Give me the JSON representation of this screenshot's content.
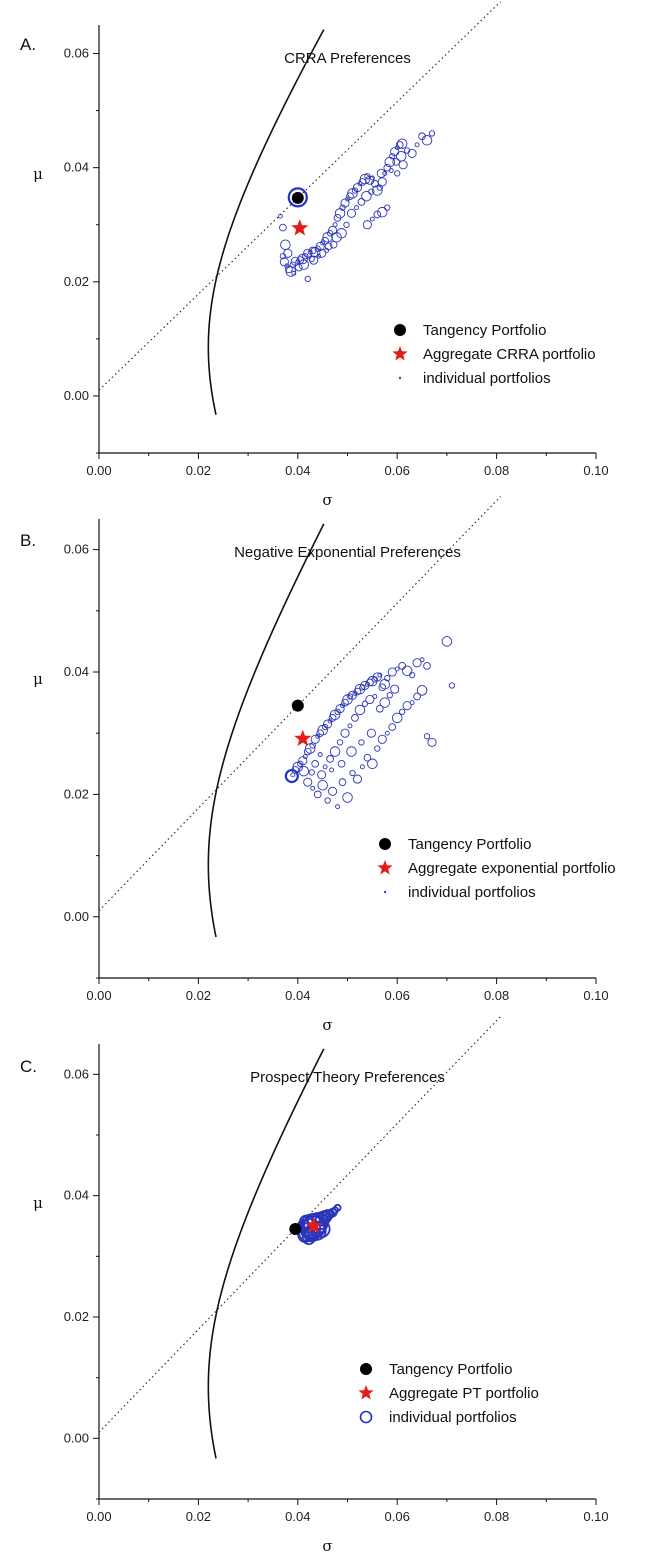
{
  "chart_data": [
    {
      "type": "scatter",
      "panel_label": "A.",
      "title": "CRRA Preferences",
      "xlabel": "σ",
      "ylabel": "μ",
      "xlim": [
        0.0,
        0.1
      ],
      "ylim": [
        -0.01,
        0.065
      ],
      "xticks": [
        "0.00",
        "0.02",
        "0.04",
        "0.06",
        "0.08",
        "0.10"
      ],
      "yticks": [
        "0.00",
        "0.02",
        "0.04",
        "0.06"
      ],
      "xtick_values": [
        0.0,
        0.02,
        0.04,
        0.06,
        0.08,
        0.1
      ],
      "ytick_values": [
        0.0,
        0.02,
        0.04,
        0.06
      ],
      "legend_position": "bottom-right",
      "legend": [
        "Tangency Portfolio",
        "Aggregate CRRA portfolio",
        "individual portfolios"
      ],
      "tangency": {
        "x": 0.04,
        "y": 0.0347
      },
      "aggregate": {
        "x": 0.0404,
        "y": 0.0294
      },
      "individual_highlight": {
        "x": 0.04,
        "y": 0.0348,
        "r": 9
      },
      "individual_portfolios": [
        [
          0.0365,
          0.0315
        ],
        [
          0.037,
          0.0295
        ],
        [
          0.0375,
          0.0265
        ],
        [
          0.037,
          0.0245
        ],
        [
          0.0373,
          0.0235
        ],
        [
          0.0378,
          0.0228
        ],
        [
          0.0382,
          0.0222
        ],
        [
          0.0386,
          0.0218
        ],
        [
          0.039,
          0.023
        ],
        [
          0.0395,
          0.0236
        ],
        [
          0.04,
          0.0235
        ],
        [
          0.0405,
          0.0238
        ],
        [
          0.041,
          0.024
        ],
        [
          0.0415,
          0.0245
        ],
        [
          0.042,
          0.025
        ],
        [
          0.0425,
          0.0252
        ],
        [
          0.043,
          0.0255
        ],
        [
          0.0435,
          0.0252
        ],
        [
          0.044,
          0.0258
        ],
        [
          0.0445,
          0.0262
        ],
        [
          0.045,
          0.0268
        ],
        [
          0.0455,
          0.0272
        ],
        [
          0.046,
          0.0278
        ],
        [
          0.0465,
          0.0285
        ],
        [
          0.047,
          0.029
        ],
        [
          0.0475,
          0.03
        ],
        [
          0.048,
          0.0312
        ],
        [
          0.0485,
          0.032
        ],
        [
          0.049,
          0.033
        ],
        [
          0.0495,
          0.0338
        ],
        [
          0.05,
          0.0345
        ],
        [
          0.0505,
          0.035
        ],
        [
          0.051,
          0.0355
        ],
        [
          0.0515,
          0.036
        ],
        [
          0.052,
          0.0365
        ],
        [
          0.0525,
          0.0372
        ],
        [
          0.053,
          0.0375
        ],
        [
          0.0535,
          0.038
        ],
        [
          0.054,
          0.0385
        ],
        [
          0.0545,
          0.0378
        ],
        [
          0.055,
          0.0382
        ],
        [
          0.0555,
          0.0372
        ],
        [
          0.056,
          0.036
        ],
        [
          0.0565,
          0.0365
        ],
        [
          0.057,
          0.0375
        ],
        [
          0.0575,
          0.039
        ],
        [
          0.058,
          0.04
        ],
        [
          0.0585,
          0.041
        ],
        [
          0.059,
          0.042
        ],
        [
          0.0595,
          0.0428
        ],
        [
          0.06,
          0.0435
        ],
        [
          0.0605,
          0.044
        ],
        [
          0.061,
          0.0442
        ],
        [
          0.062,
          0.043
        ],
        [
          0.063,
          0.0425
        ],
        [
          0.064,
          0.044
        ],
        [
          0.065,
          0.0455
        ],
        [
          0.066,
          0.0448
        ],
        [
          0.067,
          0.046
        ],
        [
          0.054,
          0.03
        ],
        [
          0.055,
          0.031
        ],
        [
          0.056,
          0.0318
        ],
        [
          0.057,
          0.0322
        ],
        [
          0.058,
          0.033
        ],
        [
          0.038,
          0.025
        ],
        [
          0.0392,
          0.0215
        ],
        [
          0.0402,
          0.0225
        ],
        [
          0.0412,
          0.023
        ],
        [
          0.0428,
          0.024
        ],
        [
          0.0448,
          0.025
        ],
        [
          0.0458,
          0.0255
        ],
        [
          0.0472,
          0.0265
        ],
        [
          0.0488,
          0.0285
        ],
        [
          0.0498,
          0.03
        ],
        [
          0.0508,
          0.032
        ],
        [
          0.0518,
          0.033
        ],
        [
          0.0528,
          0.034
        ],
        [
          0.0538,
          0.035
        ],
        [
          0.0548,
          0.0358
        ],
        [
          0.0568,
          0.039
        ],
        [
          0.0588,
          0.0395
        ],
        [
          0.0598,
          0.041
        ],
        [
          0.0608,
          0.042
        ],
        [
          0.042,
          0.0205
        ],
        [
          0.0432,
          0.0238
        ],
        [
          0.0442,
          0.0245
        ],
        [
          0.0462,
          0.0262
        ],
        [
          0.0478,
          0.0278
        ],
        [
          0.06,
          0.039
        ],
        [
          0.0612,
          0.0405
        ]
      ]
    },
    {
      "type": "scatter",
      "panel_label": "B.",
      "title": "Negative Exponential Preferences",
      "xlabel": "σ",
      "ylabel": "μ",
      "xlim": [
        0.0,
        0.1
      ],
      "ylim": [
        -0.01,
        0.065
      ],
      "xticks": [
        "0.00",
        "0.02",
        "0.04",
        "0.06",
        "0.08",
        "0.10"
      ],
      "yticks": [
        "0.00",
        "0.02",
        "0.04",
        "0.06"
      ],
      "xtick_values": [
        0.0,
        0.02,
        0.04,
        0.06,
        0.08,
        0.1
      ],
      "ytick_values": [
        0.0,
        0.02,
        0.04,
        0.06
      ],
      "legend_position": "bottom-right",
      "legend": [
        "Tangency Portfolio",
        "Aggregate exponential portfolio",
        "individual portfolios"
      ],
      "tangency": {
        "x": 0.04,
        "y": 0.0345
      },
      "aggregate": {
        "x": 0.041,
        "y": 0.0291
      },
      "individual_highlight": {
        "x": 0.0388,
        "y": 0.023,
        "r": 6
      },
      "individual_portfolios": [
        [
          0.039,
          0.0232
        ],
        [
          0.0395,
          0.024
        ],
        [
          0.04,
          0.0245
        ],
        [
          0.0405,
          0.025
        ],
        [
          0.041,
          0.0255
        ],
        [
          0.0415,
          0.0262
        ],
        [
          0.042,
          0.027
        ],
        [
          0.0425,
          0.0275
        ],
        [
          0.043,
          0.028
        ],
        [
          0.0435,
          0.029
        ],
        [
          0.044,
          0.0295
        ],
        [
          0.0445,
          0.03
        ],
        [
          0.045,
          0.0305
        ],
        [
          0.0455,
          0.031
        ],
        [
          0.046,
          0.0315
        ],
        [
          0.0465,
          0.032
        ],
        [
          0.047,
          0.0325
        ],
        [
          0.0475,
          0.033
        ],
        [
          0.048,
          0.0335
        ],
        [
          0.0485,
          0.034
        ],
        [
          0.049,
          0.0345
        ],
        [
          0.0495,
          0.035
        ],
        [
          0.05,
          0.0355
        ],
        [
          0.0505,
          0.036
        ],
        [
          0.051,
          0.0362
        ],
        [
          0.0515,
          0.0365
        ],
        [
          0.052,
          0.0368
        ],
        [
          0.0525,
          0.0372
        ],
        [
          0.053,
          0.0375
        ],
        [
          0.0535,
          0.0378
        ],
        [
          0.054,
          0.038
        ],
        [
          0.0545,
          0.0383
        ],
        [
          0.055,
          0.0385
        ],
        [
          0.0555,
          0.0388
        ],
        [
          0.056,
          0.0392
        ],
        [
          0.0565,
          0.0395
        ],
        [
          0.057,
          0.0375
        ],
        [
          0.0575,
          0.038
        ],
        [
          0.058,
          0.039
        ],
        [
          0.059,
          0.04
        ],
        [
          0.06,
          0.0405
        ],
        [
          0.061,
          0.041
        ],
        [
          0.062,
          0.0402
        ],
        [
          0.063,
          0.0395
        ],
        [
          0.064,
          0.0415
        ],
        [
          0.065,
          0.042
        ],
        [
          0.066,
          0.041
        ],
        [
          0.07,
          0.045
        ],
        [
          0.071,
          0.0378
        ],
        [
          0.042,
          0.022
        ],
        [
          0.043,
          0.021
        ],
        [
          0.044,
          0.02
        ],
        [
          0.045,
          0.0215
        ],
        [
          0.046,
          0.019
        ],
        [
          0.047,
          0.0205
        ],
        [
          0.048,
          0.018
        ],
        [
          0.049,
          0.022
        ],
        [
          0.05,
          0.0195
        ],
        [
          0.051,
          0.0235
        ],
        [
          0.052,
          0.0225
        ],
        [
          0.053,
          0.0245
        ],
        [
          0.054,
          0.026
        ],
        [
          0.055,
          0.025
        ],
        [
          0.056,
          0.0275
        ],
        [
          0.057,
          0.029
        ],
        [
          0.058,
          0.03
        ],
        [
          0.059,
          0.031
        ],
        [
          0.06,
          0.0325
        ],
        [
          0.061,
          0.0335
        ],
        [
          0.062,
          0.0345
        ],
        [
          0.063,
          0.035
        ],
        [
          0.064,
          0.036
        ],
        [
          0.065,
          0.037
        ],
        [
          0.066,
          0.0295
        ],
        [
          0.067,
          0.0285
        ],
        [
          0.0455,
          0.0245
        ],
        [
          0.0465,
          0.0258
        ],
        [
          0.0475,
          0.027
        ],
        [
          0.0485,
          0.0285
        ],
        [
          0.0495,
          0.03
        ],
        [
          0.0505,
          0.0312
        ],
        [
          0.0515,
          0.0325
        ],
        [
          0.0525,
          0.0338
        ],
        [
          0.0535,
          0.0348
        ],
        [
          0.0545,
          0.0355
        ],
        [
          0.0555,
          0.036
        ],
        [
          0.0565,
          0.034
        ],
        [
          0.0575,
          0.035
        ],
        [
          0.0585,
          0.0362
        ],
        [
          0.0595,
          0.0372
        ],
        [
          0.0445,
          0.0265
        ],
        [
          0.0435,
          0.025
        ],
        [
          0.0412,
          0.0238
        ],
        [
          0.0428,
          0.0236
        ],
        [
          0.0448,
          0.0232
        ],
        [
          0.0468,
          0.024
        ],
        [
          0.0488,
          0.025
        ],
        [
          0.0508,
          0.027
        ],
        [
          0.0528,
          0.0285
        ],
        [
          0.0548,
          0.03
        ]
      ]
    },
    {
      "type": "scatter",
      "panel_label": "C.",
      "title": "Prospect Theory Preferences",
      "xlabel": "σ",
      "ylabel": "μ",
      "xlim": [
        0.0,
        0.1
      ],
      "ylim": [
        -0.01,
        0.065
      ],
      "xticks": [
        "0.00",
        "0.02",
        "0.04",
        "0.06",
        "0.08",
        "0.10"
      ],
      "yticks": [
        "0.00",
        "0.02",
        "0.04",
        "0.06"
      ],
      "xtick_values": [
        0.0,
        0.02,
        0.04,
        0.06,
        0.08,
        0.1
      ],
      "ytick_values": [
        0.0,
        0.02,
        0.04,
        0.06
      ],
      "legend_position": "bottom-right",
      "legend": [
        "Tangency Portfolio",
        "Aggregate PT portfolio",
        "individual portfolios"
      ],
      "tangency": {
        "x": 0.0395,
        "y": 0.0345
      },
      "aggregate": {
        "x": 0.0432,
        "y": 0.035
      },
      "individual_highlight": {
        "x": 0.0432,
        "y": 0.0348,
        "r": 11
      },
      "individual_portfolios": [
        [
          0.042,
          0.034,
          9
        ],
        [
          0.0425,
          0.0345,
          10
        ],
        [
          0.043,
          0.035,
          12
        ],
        [
          0.0435,
          0.0352,
          11
        ],
        [
          0.044,
          0.0355,
          10
        ],
        [
          0.0428,
          0.0338,
          8
        ],
        [
          0.0438,
          0.0342,
          9
        ],
        [
          0.0445,
          0.0358,
          8
        ],
        [
          0.045,
          0.0362,
          7
        ],
        [
          0.0455,
          0.0365,
          6
        ],
        [
          0.046,
          0.0368,
          5
        ],
        [
          0.0465,
          0.037,
          4
        ],
        [
          0.047,
          0.0372,
          4
        ],
        [
          0.0475,
          0.0376,
          3
        ],
        [
          0.048,
          0.038,
          3
        ],
        [
          0.0415,
          0.0335,
          7
        ],
        [
          0.0412,
          0.035,
          6
        ],
        [
          0.0418,
          0.0356,
          7
        ],
        [
          0.0422,
          0.033,
          6
        ],
        [
          0.0448,
          0.0345,
          8
        ]
      ]
    }
  ]
}
